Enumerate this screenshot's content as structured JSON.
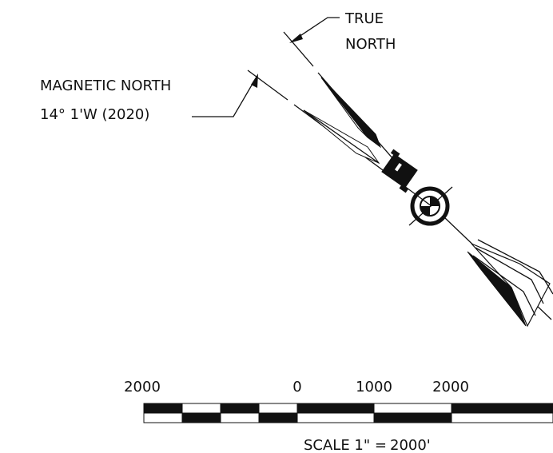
{
  "true_north": {
    "line1": "TRUE",
    "line2": "NORTH"
  },
  "magnetic_north": {
    "line1": "MAGNETIC NORTH",
    "line2": "14° 1'W (2020)"
  },
  "scale_bar": {
    "labels": [
      "2000",
      "0",
      "1000",
      "2000"
    ],
    "caption": "SCALE 1\" =",
    "caption_value": "2000'"
  }
}
